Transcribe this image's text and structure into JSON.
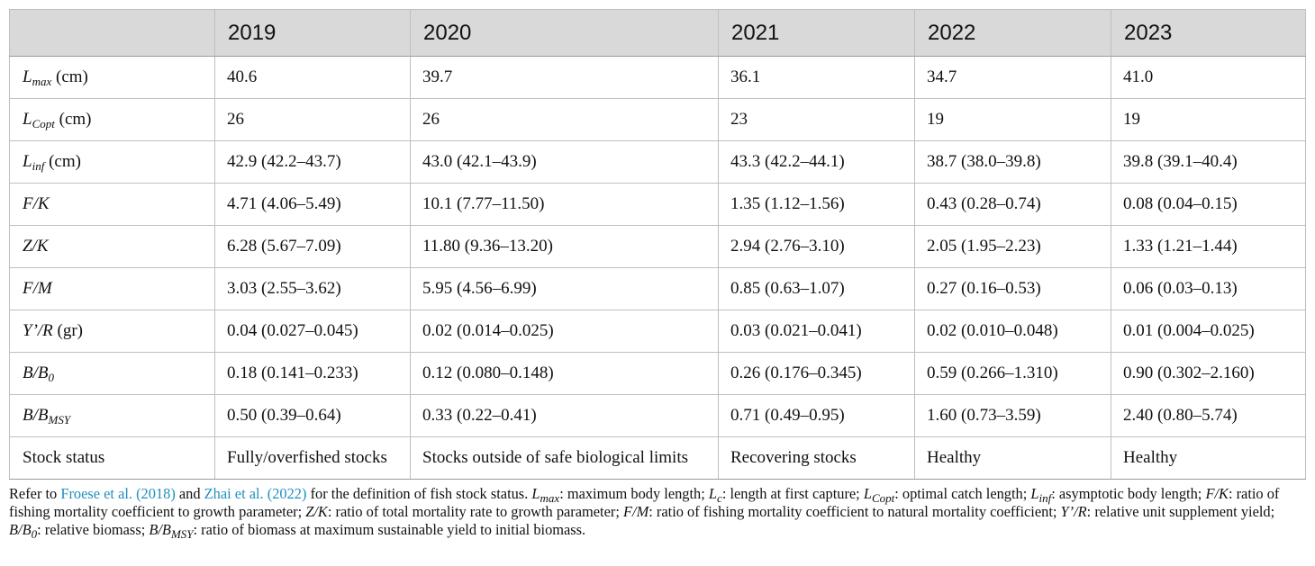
{
  "table": {
    "columns": [
      "",
      "2019",
      "2020",
      "2021",
      "2022",
      "2023"
    ],
    "rows": [
      {
        "sym": "L",
        "sub": "max",
        "unit": " (cm)",
        "cells": [
          "40.6",
          "39.7",
          "36.1",
          "34.7",
          "41.0"
        ]
      },
      {
        "sym": "L",
        "sub": "Copt",
        "unit": " (cm)",
        "cells": [
          "26",
          "26",
          "23",
          "19",
          "19"
        ]
      },
      {
        "sym": "L",
        "sub": "inf",
        "unit": " (cm)",
        "cells": [
          "42.9 (42.2–43.7)",
          "43.0 (42.1–43.9)",
          "43.3 (42.2–44.1)",
          "38.7 (38.0–39.8)",
          "39.8 (39.1–40.4)"
        ]
      },
      {
        "sym": "F/K",
        "sub": "",
        "unit": "",
        "cells": [
          "4.71 (4.06–5.49)",
          "10.1 (7.77–11.50)",
          "1.35 (1.12–1.56)",
          "0.43 (0.28–0.74)",
          "0.08 (0.04–0.15)"
        ]
      },
      {
        "sym": "Z/K",
        "sub": "",
        "unit": "",
        "cells": [
          "6.28 (5.67–7.09)",
          "11.80 (9.36–13.20)",
          "2.94 (2.76–3.10)",
          "2.05 (1.95–2.23)",
          "1.33 (1.21–1.44)"
        ]
      },
      {
        "sym": "F/M",
        "sub": "",
        "unit": "",
        "cells": [
          "3.03 (2.55–3.62)",
          "5.95 (4.56–6.99)",
          "0.85 (0.63–1.07)",
          "0.27 (0.16–0.53)",
          "0.06 (0.03–0.13)"
        ]
      },
      {
        "sym": "Y’/R",
        "sub": "",
        "unit": " (gr)",
        "cells": [
          "0.04 (0.027–0.045)",
          "0.02 (0.014–0.025)",
          "0.03 (0.021–0.041)",
          "0.02 (0.010–0.048)",
          "0.01 (0.004–0.025)"
        ]
      },
      {
        "sym": "B/B",
        "sub": "0",
        "unit": "",
        "cells": [
          "0.18 (0.141–0.233)",
          "0.12 (0.080–0.148)",
          "0.26 (0.176–0.345)",
          "0.59 (0.266–1.310)",
          "0.90 (0.302–2.160)"
        ]
      },
      {
        "sym": "B/B",
        "sub": "MSY",
        "unit": "",
        "cells": [
          "0.50 (0.39–0.64)",
          "0.33 (0.22–0.41)",
          "0.71 (0.49–0.95)",
          "1.60 (0.73–3.59)",
          "2.40 (0.80–5.74)"
        ]
      },
      {
        "plain": "Stock status",
        "cells": [
          "Fully/overfished stocks",
          "Stocks outside of safe biological limits",
          "Recovering stocks",
          "Healthy",
          "Healthy"
        ]
      }
    ]
  },
  "footnote": {
    "refer_prefix": "Refer to ",
    "ref1": "Froese et al. (2018)",
    "and": " and ",
    "ref2": "Zhai et al. (2022)",
    "refer_suffix": " for the definition of fish stock status. ",
    "defs": [
      {
        "sym": "L",
        "sub": "max",
        "text": ": maximum body length; "
      },
      {
        "sym": "L",
        "sub": "c",
        "text": ": length at first capture; "
      },
      {
        "sym": "L",
        "sub": "Copt",
        "text": ": optimal catch length; "
      },
      {
        "sym": "L",
        "sub": "inf",
        "text": ": asymptotic body length; "
      },
      {
        "sym": "F/K",
        "sub": "",
        "text": ": ratio of fishing mortality coefficient to growth parameter; "
      },
      {
        "sym": "Z/K",
        "sub": "",
        "text": ": ratio of total mortality rate to growth parameter; "
      },
      {
        "sym": "F/M",
        "sub": "",
        "text": ": ratio of fishing mortality coefficient to natural mortality coefficient; "
      },
      {
        "sym": "Y’/R",
        "sub": "",
        "text": ": relative unit supplement yield; "
      },
      {
        "sym": "B/B",
        "sub": "0",
        "text": ": relative biomass; "
      },
      {
        "sym": "B/B",
        "sub": "MSY",
        "text": ": ratio of biomass at maximum sustainable yield to initial biomass."
      }
    ]
  }
}
